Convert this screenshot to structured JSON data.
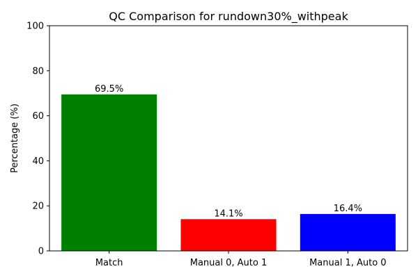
{
  "chart_data": {
    "type": "bar",
    "title": "QC Comparison for rundown30%_withpeak",
    "xlabel": "",
    "ylabel": "Percentage (%)",
    "categories": [
      "Match",
      "Manual 0, Auto 1",
      "Manual 1, Auto 0"
    ],
    "values": [
      69.5,
      14.1,
      16.4
    ],
    "value_labels": [
      "69.5%",
      "14.1%",
      "16.4%"
    ],
    "colors": [
      "#008000",
      "#ff0000",
      "#0000ff"
    ],
    "ylim": [
      0,
      100
    ],
    "yticks": [
      0,
      20,
      40,
      60,
      80,
      100
    ],
    "grid": false,
    "legend": false
  }
}
